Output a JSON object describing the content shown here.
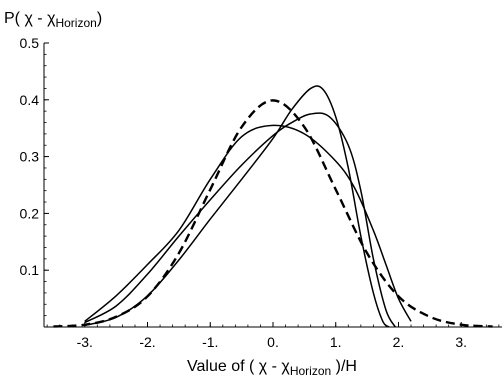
{
  "chart_data": {
    "type": "line",
    "ylabel": {
      "prefix": "P( χ - χ",
      "subscript": "Horizon",
      "suffix": ")"
    },
    "xlabel": {
      "prefix": "Value of ( χ - χ",
      "subscript": "Horizon",
      "suffix": " )/H"
    },
    "xlim": [
      -3.65,
      3.65
    ],
    "ylim": [
      0,
      0.5
    ],
    "xticks": [
      {
        "value": -3,
        "label": "-3."
      },
      {
        "value": -2,
        "label": "-2."
      },
      {
        "value": -1,
        "label": "-1."
      },
      {
        "value": 0,
        "label": "0."
      },
      {
        "value": 1,
        "label": "1."
      },
      {
        "value": 2,
        "label": "2."
      },
      {
        "value": 3,
        "label": "3."
      }
    ],
    "yticks": [
      {
        "value": 0.1,
        "label": "0.1"
      },
      {
        "value": 0.2,
        "label": "0.2"
      },
      {
        "value": 0.3,
        "label": "0.3"
      },
      {
        "value": 0.4,
        "label": "0.4"
      },
      {
        "value": 0.5,
        "label": "0.5"
      }
    ],
    "series": [
      {
        "style": "dashed",
        "x": [
          -3.5,
          -3.0,
          -2.5,
          -2.0,
          -1.5,
          -1.0,
          -0.5,
          0.0,
          0.5,
          1.0,
          1.5,
          2.0,
          2.5,
          3.0,
          3.5
        ],
        "y": [
          0.001,
          0.004,
          0.018,
          0.054,
          0.13,
          0.242,
          0.352,
          0.399,
          0.352,
          0.242,
          0.13,
          0.054,
          0.018,
          0.004,
          0.001
        ]
      },
      {
        "style": "solid",
        "x": [
          -3.0,
          -2.5,
          -2.0,
          -1.5,
          -1.0,
          -0.5,
          0.0,
          0.3,
          0.6,
          0.9,
          1.2,
          1.4,
          1.6,
          1.8,
          1.95
        ],
        "y": [
          0.008,
          0.037,
          0.093,
          0.16,
          0.224,
          0.285,
          0.337,
          0.36,
          0.375,
          0.37,
          0.32,
          0.24,
          0.12,
          0.03,
          0.0
        ]
      },
      {
        "style": "solid",
        "x": [
          -3.0,
          -2.5,
          -2.0,
          -1.5,
          -1.0,
          -0.5,
          0.0,
          0.3,
          0.6,
          0.8,
          1.0,
          1.2,
          1.4,
          1.6,
          1.75,
          1.85
        ],
        "y": [
          0.003,
          0.017,
          0.055,
          0.118,
          0.19,
          0.26,
          0.332,
          0.383,
          0.42,
          0.418,
          0.37,
          0.28,
          0.16,
          0.06,
          0.01,
          0.0
        ]
      },
      {
        "style": "solid",
        "x": [
          -3.0,
          -2.5,
          -2.0,
          -1.5,
          -1.0,
          -0.5,
          0.0,
          0.5,
          1.0,
          1.3,
          1.6,
          1.8,
          2.0,
          2.2
        ],
        "y": [
          0.01,
          0.055,
          0.11,
          0.17,
          0.26,
          0.335,
          0.355,
          0.34,
          0.292,
          0.245,
          0.17,
          0.11,
          0.05,
          0.01
        ]
      }
    ]
  }
}
